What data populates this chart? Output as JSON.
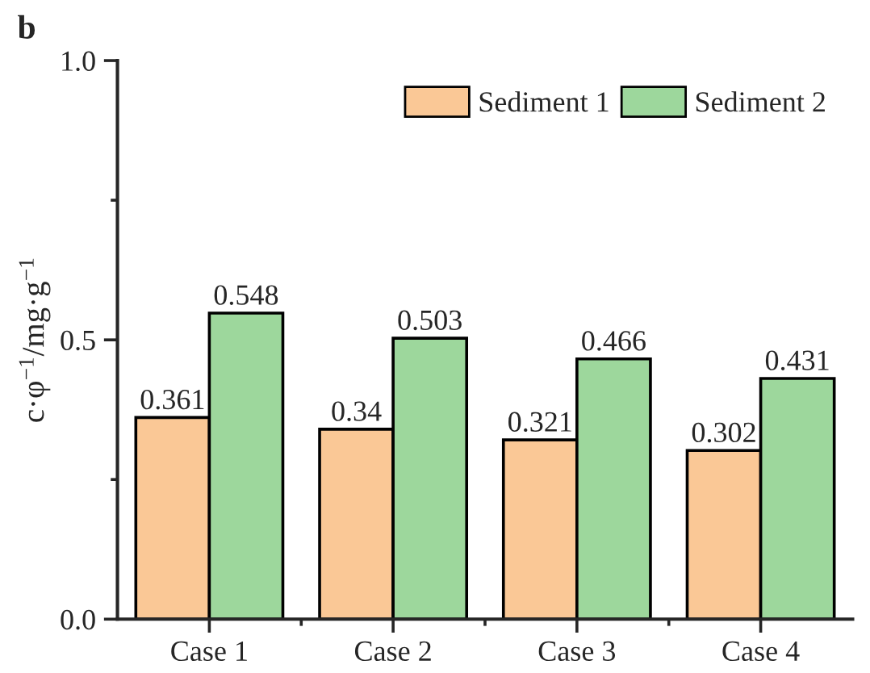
{
  "chart_data": {
    "type": "bar",
    "annotations": [
      "b"
    ],
    "ylabel": "c·φ$^{−1}$/mg·g$^{−1}$",
    "categories": [
      "Case 1",
      "Case 2",
      "Case 3",
      "Case 4"
    ],
    "series": [
      {
        "name": "Sediment 1",
        "color": "#fac896",
        "values": [
          0.361,
          0.34,
          0.321,
          0.302
        ]
      },
      {
        "name": "Sediment 2",
        "color": "#9dd79c",
        "values": [
          0.548,
          0.503,
          0.466,
          0.431
        ]
      }
    ],
    "ylim": [
      0,
      1.0
    ],
    "yticks": [
      {
        "value": 0,
        "label": "0.0"
      },
      {
        "value": 0.5,
        "label": "0.5"
      },
      {
        "value": 1.0,
        "label": "1.0"
      }
    ],
    "data_labels": true,
    "legend": "top right",
    "grid": false
  }
}
